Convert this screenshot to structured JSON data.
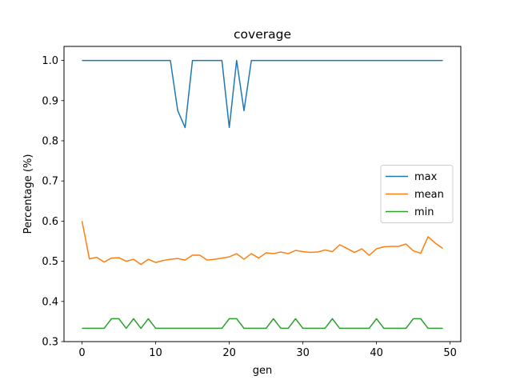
{
  "chart_data": {
    "type": "line",
    "title": "coverage",
    "xlabel": "gen",
    "ylabel": "Percentage (%)",
    "xlim": [
      -2.45,
      51.45
    ],
    "ylim": [
      0.3,
      1.035
    ],
    "xticks": [
      0,
      10,
      20,
      30,
      40,
      50
    ],
    "yticks": [
      0.3,
      0.4,
      0.5,
      0.6,
      0.7,
      0.8,
      0.9,
      1.0
    ],
    "ytick_labels": [
      "0.3",
      "0.4",
      "0.5",
      "0.6",
      "0.7",
      "0.8",
      "0.9",
      "1.0"
    ],
    "grid": false,
    "legend_position": "center-right",
    "x": [
      0,
      1,
      2,
      3,
      4,
      5,
      6,
      7,
      8,
      9,
      10,
      11,
      12,
      13,
      14,
      15,
      16,
      17,
      18,
      19,
      20,
      21,
      22,
      23,
      24,
      25,
      26,
      27,
      28,
      29,
      30,
      31,
      32,
      33,
      34,
      35,
      36,
      37,
      38,
      39,
      40,
      41,
      42,
      43,
      44,
      45,
      46,
      47,
      48,
      49
    ],
    "series": [
      {
        "name": "max",
        "color": "#1f77b4",
        "values": [
          1,
          1,
          1,
          1,
          1,
          1,
          1,
          1,
          1,
          1,
          1,
          1,
          1,
          0.875,
          0.833,
          1,
          1,
          1,
          1,
          1,
          0.833,
          1,
          0.875,
          1,
          1,
          1,
          1,
          1,
          1,
          1,
          1,
          1,
          1,
          1,
          1,
          1,
          1,
          1,
          1,
          1,
          1,
          1,
          1,
          1,
          1,
          1,
          1,
          1,
          1,
          1
        ]
      },
      {
        "name": "mean",
        "color": "#ff7f0e",
        "values": [
          0.6,
          0.506,
          0.51,
          0.498,
          0.508,
          0.509,
          0.5,
          0.505,
          0.492,
          0.505,
          0.497,
          0.502,
          0.505,
          0.507,
          0.503,
          0.515,
          0.515,
          0.503,
          0.505,
          0.508,
          0.511,
          0.519,
          0.505,
          0.519,
          0.508,
          0.521,
          0.519,
          0.523,
          0.519,
          0.527,
          0.524,
          0.522,
          0.523,
          0.528,
          0.524,
          0.541,
          0.532,
          0.522,
          0.531,
          0.515,
          0.531,
          0.536,
          0.537,
          0.537,
          0.543,
          0.526,
          0.52,
          0.561,
          0.545,
          0.532
        ]
      },
      {
        "name": "min",
        "color": "#2ca02c",
        "values": [
          0.333,
          0.333,
          0.333,
          0.333,
          0.357,
          0.357,
          0.333,
          0.357,
          0.333,
          0.357,
          0.333,
          0.333,
          0.333,
          0.333,
          0.333,
          0.333,
          0.333,
          0.333,
          0.333,
          0.333,
          0.357,
          0.357,
          0.333,
          0.333,
          0.333,
          0.333,
          0.357,
          0.333,
          0.333,
          0.357,
          0.333,
          0.333,
          0.333,
          0.333,
          0.357,
          0.333,
          0.333,
          0.333,
          0.333,
          0.333,
          0.357,
          0.333,
          0.333,
          0.333,
          0.333,
          0.357,
          0.357,
          0.333,
          0.333,
          0.333
        ]
      }
    ]
  }
}
